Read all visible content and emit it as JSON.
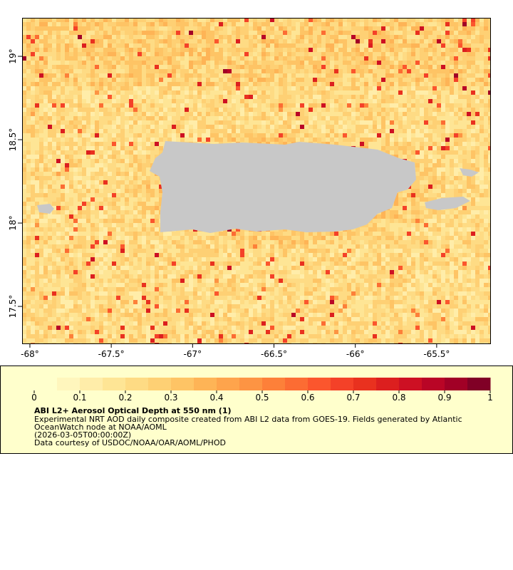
{
  "map": {
    "xaxis": {
      "lim": [
        -68.048,
        -65.171
      ],
      "ticks": [
        {
          "value": -68,
          "label": "-68°"
        },
        {
          "value": -67.5,
          "label": "-67.5°"
        },
        {
          "value": -67,
          "label": "-67°"
        },
        {
          "value": -66.5,
          "label": "-66.5°"
        },
        {
          "value": -66,
          "label": "-66°"
        },
        {
          "value": -65.5,
          "label": "-65.5°"
        }
      ]
    },
    "yaxis": {
      "lim": [
        17.278,
        19.231
      ],
      "ticks": [
        {
          "value": 17.5,
          "label": "17.5°"
        },
        {
          "value": 18,
          "label": "18°"
        },
        {
          "value": 18.5,
          "label": "18.5°"
        },
        {
          "value": 19,
          "label": "19°"
        }
      ]
    },
    "colorbar": {
      "lim": [
        0,
        1
      ],
      "ticks": [
        0,
        0.1,
        0.2,
        0.3,
        0.4,
        0.5,
        0.6,
        0.7,
        0.8,
        0.9,
        1
      ],
      "colors": [
        "#ffffcc",
        "#fff6bd",
        "#ffeda9",
        "#fee595",
        "#fedb84",
        "#fed074",
        "#fec465",
        "#feb456",
        "#fea44c",
        "#fd9443",
        "#fd8039",
        "#fc6c33",
        "#fb562d",
        "#f44128",
        "#e9311f",
        "#dc1f1f",
        "#cd1023",
        "#b90526",
        "#a10026",
        "#800026"
      ]
    },
    "legend": {
      "title": "ABI L2+ Aerosol Optical Depth at 550 nm (1)",
      "lines": [
        "Experimental NRT AOD daily composite created from ABI L2 data from GOES-19. Fields generated by Atlantic",
        "OceanWatch node at NOAA/AOML",
        "(2026-03-05T00:00:00Z)",
        "Data courtesy of USDOC/NOAA/OAR/AOML/PHOD"
      ]
    }
  }
}
